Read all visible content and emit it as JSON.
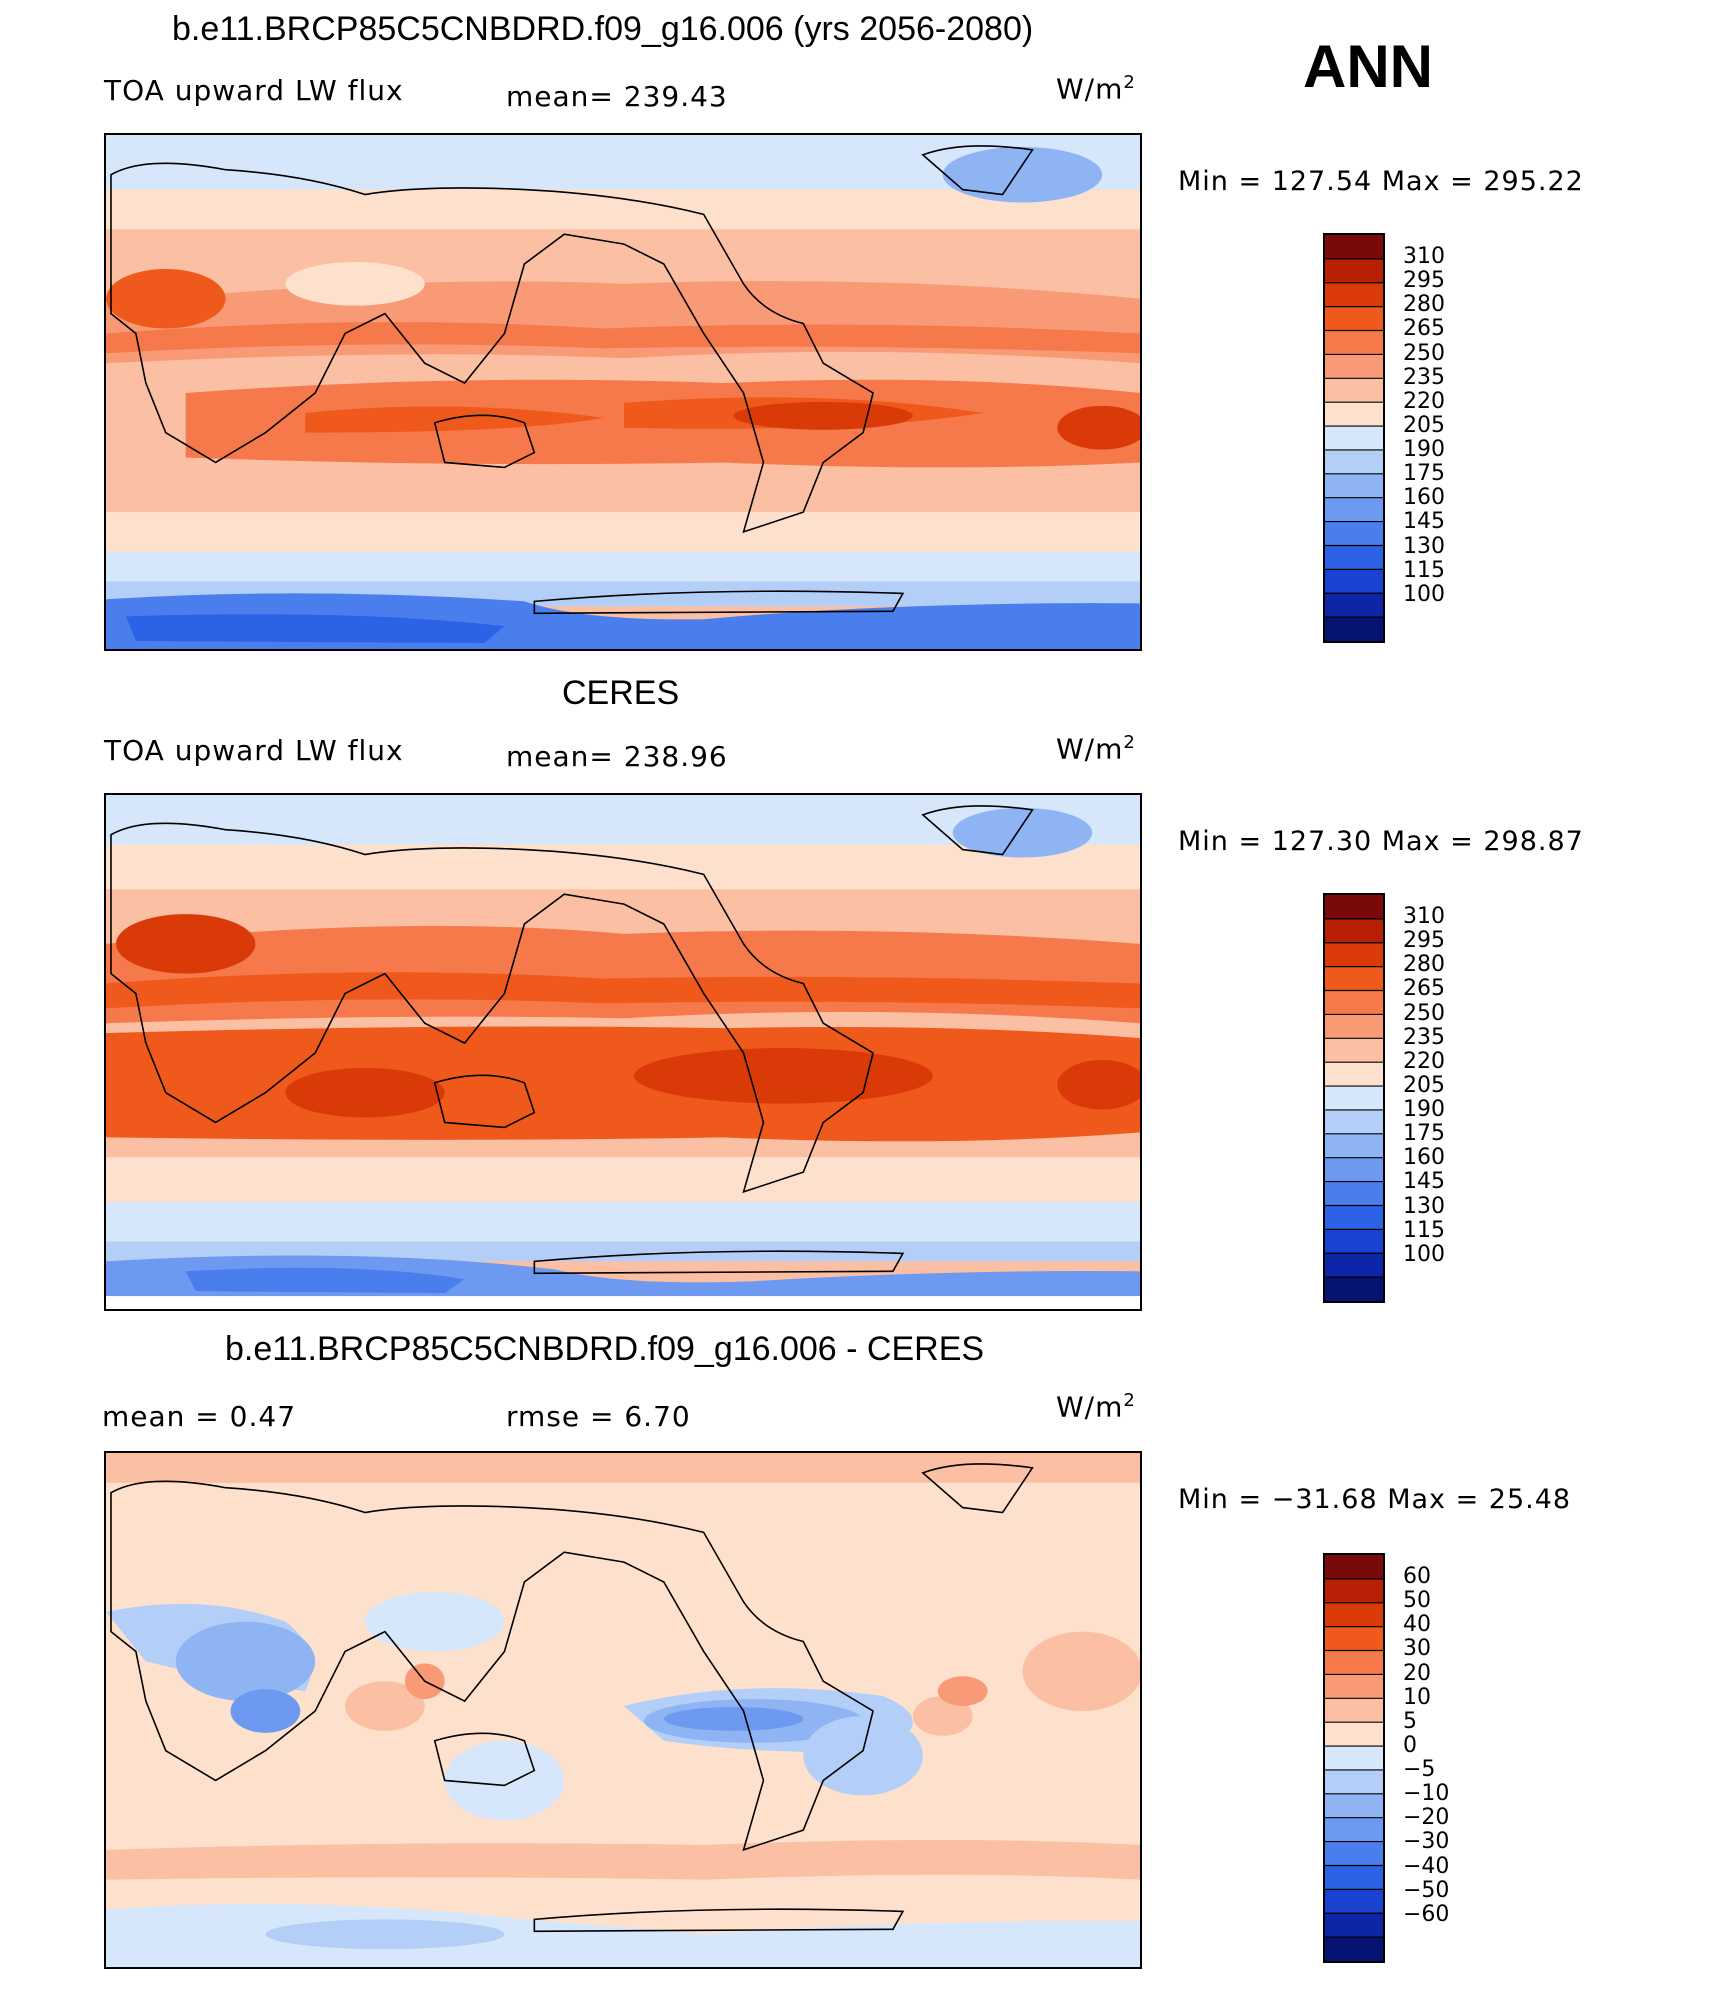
{
  "season": "ANN",
  "panels": [
    {
      "title": "b.e11.BRCP85C5CNBDRD.f09_g16.006 (yrs 2056-2080)",
      "left_label": "TOA upward LW flux",
      "center_label": "mean= 239.43",
      "units": "W/m",
      "units_sup": "2",
      "minmax": "Min  =  127.54  Max  =  295.22"
    },
    {
      "title": "CERES",
      "left_label": "TOA upward LW flux",
      "center_label": "mean= 238.96",
      "units": "W/m",
      "units_sup": "2",
      "minmax": "Min  =  127.30  Max  =  298.87"
    },
    {
      "title": "b.e11.BRCP85C5CNBDRD.f09_g16.006 - CERES",
      "left_label": "mean =     0.47",
      "center_label": "rmse =     6.70",
      "units": "W/m",
      "units_sup": "2",
      "minmax": "Min  =  −31.68  Max  =    25.48"
    }
  ],
  "colorbars": {
    "abs": {
      "levels": [
        "310",
        "295",
        "280",
        "265",
        "250",
        "235",
        "220",
        "205",
        "190",
        "175",
        "160",
        "145",
        "130",
        "115",
        "100"
      ],
      "colors": [
        "#7a0a0a",
        "#b81f05",
        "#d93a08",
        "#ef5a1c",
        "#f5794a",
        "#f89a76",
        "#fbbfa3",
        "#fde1cd",
        "#d7e7fb",
        "#b4cff7",
        "#8eb4f3",
        "#6d9af0",
        "#4b7eed",
        "#2c62e6",
        "#1842cf",
        "#0d26a8",
        "#061370"
      ]
    },
    "diff": {
      "levels": [
        "60",
        "50",
        "40",
        "30",
        "20",
        "10",
        "5",
        "0",
        "−5",
        "−10",
        "−20",
        "−30",
        "−40",
        "−50",
        "−60"
      ],
      "colors": [
        "#7a0a0a",
        "#b81f05",
        "#d93a08",
        "#ef5a1c",
        "#f5794a",
        "#f89a76",
        "#fbbfa3",
        "#fde1cd",
        "#d7e7fb",
        "#b4cff7",
        "#8eb4f3",
        "#6d9af0",
        "#4b7eed",
        "#2c62e6",
        "#1842cf",
        "#0d26a8",
        "#061370"
      ]
    }
  },
  "chart_data": [
    {
      "type": "heatmap",
      "title": "b.e11.BRCP85C5CNBDRD.f09_g16.006 (yrs 2056-2080)",
      "field": "TOA upward LW flux",
      "units": "W/m2",
      "mean": 239.43,
      "min": 127.54,
      "max": 295.22,
      "contour_levels": [
        100,
        115,
        130,
        145,
        160,
        175,
        190,
        205,
        220,
        235,
        250,
        265,
        280,
        295,
        310
      ]
    },
    {
      "type": "heatmap",
      "title": "CERES",
      "field": "TOA upward LW flux",
      "units": "W/m2",
      "mean": 238.96,
      "min": 127.3,
      "max": 298.87,
      "contour_levels": [
        100,
        115,
        130,
        145,
        160,
        175,
        190,
        205,
        220,
        235,
        250,
        265,
        280,
        295,
        310
      ]
    },
    {
      "type": "heatmap",
      "title": "b.e11.BRCP85C5CNBDRD.f09_g16.006 - CERES",
      "units": "W/m2",
      "mean": 0.47,
      "rmse": 6.7,
      "min": -31.68,
      "max": 25.48,
      "contour_levels": [
        -60,
        -50,
        -40,
        -30,
        -20,
        -10,
        -5,
        0,
        5,
        10,
        20,
        30,
        40,
        50,
        60
      ]
    }
  ]
}
